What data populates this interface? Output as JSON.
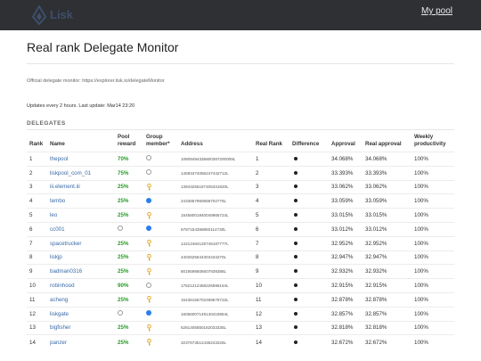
{
  "header": {
    "logo_text": "Lisk",
    "nav_link": "My pool"
  },
  "page": {
    "title": "Real rank Delegate Monitor",
    "official_text": "Official delegate monitor: https://explorer.lisk.io/delegateMonitor",
    "updates_text": "Updates every 2 hours. Last update: Mar14 23:20",
    "section_label": "DELEGATES"
  },
  "table": {
    "headers": {
      "rank": "Rank",
      "name": "Name",
      "pool_reward": "Pool reward",
      "group_member": "Group member*",
      "address": "Address",
      "real_rank": "Real Rank",
      "difference": "Difference",
      "approval": "Approval",
      "real_approval": "Real approval",
      "weekly": "Weekly productivity"
    },
    "rows": [
      {
        "rank": "1",
        "name": "thepool",
        "pool": "70%",
        "group": "empty",
        "address": "10809494336800387200009L",
        "real_rank": "1",
        "approval": "34.068%",
        "real_approval": "34.068%",
        "weekly": "100%"
      },
      {
        "rank": "2",
        "name": "liskpool_com_01",
        "pool": "75%",
        "group": "empty",
        "address": "14593474056247442712L",
        "real_rank": "2",
        "approval": "33.393%",
        "real_approval": "33.393%",
        "weekly": "100%"
      },
      {
        "rank": "3",
        "name": "iii.element.iii",
        "pool": "25%",
        "group": "key",
        "address": "13943256167405331820L",
        "real_rank": "3",
        "approval": "33.062%",
        "real_approval": "33.062%",
        "weekly": "100%"
      },
      {
        "rank": "4",
        "name": "tembo",
        "pool": "25%",
        "group": "blue",
        "address": "2433657950658702776L",
        "real_rank": "4",
        "approval": "33.059%",
        "real_approval": "33.059%",
        "weekly": "100%"
      },
      {
        "rank": "5",
        "name": "leo",
        "pool": "25%",
        "group": "key",
        "address": "15458001840048965724L",
        "real_rank": "5",
        "approval": "33.015%",
        "real_approval": "33.015%",
        "weekly": "100%"
      },
      {
        "rank": "6",
        "name": "cc001",
        "pool": "",
        "group": "empty-blue",
        "address": "6787154358850114730L",
        "real_rank": "6",
        "approval": "33.012%",
        "real_approval": "33.012%",
        "weekly": "100%"
      },
      {
        "rank": "7",
        "name": "spacetrucker",
        "pool": "25%",
        "group": "key",
        "address": "14212484126746187777L",
        "real_rank": "7",
        "approval": "32.952%",
        "real_approval": "32.952%",
        "weekly": "100%"
      },
      {
        "rank": "8",
        "name": "liskjp",
        "pool": "25%",
        "group": "key",
        "address": "4402625644304434270L",
        "real_rank": "8",
        "approval": "32.947%",
        "real_approval": "32.947%",
        "weekly": "100%"
      },
      {
        "rank": "9",
        "name": "badman0316",
        "pool": "25%",
        "group": "key",
        "address": "8019598606607939388L",
        "real_rank": "9",
        "approval": "32.932%",
        "real_approval": "32.932%",
        "weekly": "100%"
      },
      {
        "rank": "10",
        "name": "robinhood",
        "pool": "90%",
        "group": "empty",
        "address": "17621212458226596154L",
        "real_rank": "10",
        "approval": "32.915%",
        "real_approval": "32.915%",
        "weekly": "100%"
      },
      {
        "rank": "11",
        "name": "acheng",
        "pool": "25%",
        "group": "key",
        "address": "15435156702499576722L",
        "real_rank": "11",
        "approval": "32.878%",
        "real_approval": "32.878%",
        "weekly": "100%"
      },
      {
        "rank": "12",
        "name": "liskgate",
        "pool": "",
        "group": "empty-blue",
        "address": "16056007149140416854L",
        "real_rank": "12",
        "approval": "32.857%",
        "real_approval": "32.857%",
        "weekly": "100%"
      },
      {
        "rank": "13",
        "name": "bigfisher",
        "pool": "25%",
        "group": "key",
        "address": "6281405850162033335L",
        "real_rank": "13",
        "approval": "32.818%",
        "real_approval": "32.818%",
        "weekly": "100%"
      },
      {
        "rank": "14",
        "name": "panzer",
        "pool": "25%",
        "group": "key",
        "address": "3237673512436243226L",
        "real_rank": "14",
        "approval": "32.672%",
        "real_approval": "32.672%",
        "weekly": "100%"
      }
    ]
  },
  "colors": {
    "topbar": "#2e3034",
    "link": "#3a6aa8",
    "pool_green": "#2a9a2a",
    "member_blue": "#2b7de9",
    "key_gold": "#e0a92a"
  }
}
